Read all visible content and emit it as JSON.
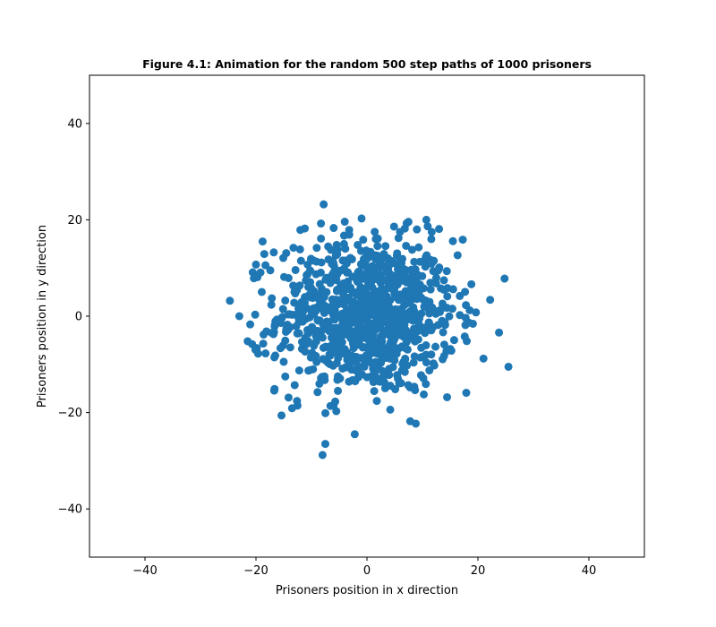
{
  "chart_data": {
    "type": "scatter",
    "title": "Figure 4.1: Animation for the random 500 step paths of 1000 prisoners",
    "xlabel": "Prisoners position in x direction",
    "ylabel": "Prisoners position in y direction",
    "xlim": [
      -50,
      50
    ],
    "ylim": [
      -50,
      50
    ],
    "xticks": [
      -40,
      -20,
      0,
      20,
      40
    ],
    "yticks": [
      -40,
      -20,
      0,
      20,
      40
    ],
    "xtick_labels": [
      "−40",
      "−20",
      "0",
      "20",
      "40"
    ],
    "ytick_labels": [
      "−40",
      "−20",
      "0",
      "20",
      "40"
    ],
    "grid": false,
    "point_count": 1000,
    "marker_color": "#1f77b4",
    "distribution": {
      "center": [
        0,
        0
      ],
      "spread_sd": 8
    },
    "notable_points": [
      [
        -7.8,
        23.2
      ],
      [
        -8.0,
        -28.8
      ],
      [
        -7.5,
        -26.5
      ],
      [
        -2.2,
        -24.5
      ],
      [
        -24.7,
        3.2
      ],
      [
        -23.0,
        0.0
      ],
      [
        -21.5,
        -5.2
      ],
      [
        -20.7,
        -5.8
      ],
      [
        25.5,
        -10.5
      ],
      [
        24.8,
        7.8
      ],
      [
        23.8,
        -3.4
      ],
      [
        22.2,
        3.4
      ],
      [
        21.0,
        -8.8
      ],
      [
        10.7,
        20.0
      ],
      [
        13.0,
        18.1
      ],
      [
        -15.4,
        -20.6
      ],
      [
        -13.5,
        -19.1
      ],
      [
        7.8,
        -21.8
      ],
      [
        8.8,
        -22.3
      ],
      [
        4.2,
        -19.4
      ],
      [
        17.9,
        -15.9
      ],
      [
        -18.8,
        15.5
      ],
      [
        -20.0,
        10.7
      ],
      [
        -18.5,
        12.9
      ],
      [
        -4.0,
        19.6
      ],
      [
        -3.2,
        17.9
      ],
      [
        -6.0,
        18.3
      ],
      [
        1.4,
        17.5
      ],
      [
        9.0,
        18.0
      ],
      [
        11.6,
        16.0
      ],
      [
        -12.0,
        17.9
      ],
      [
        -11.2,
        18.2
      ]
    ]
  },
  "colors": {
    "marker": "#1f77b4",
    "axes": "#000000",
    "background": "#ffffff"
  }
}
